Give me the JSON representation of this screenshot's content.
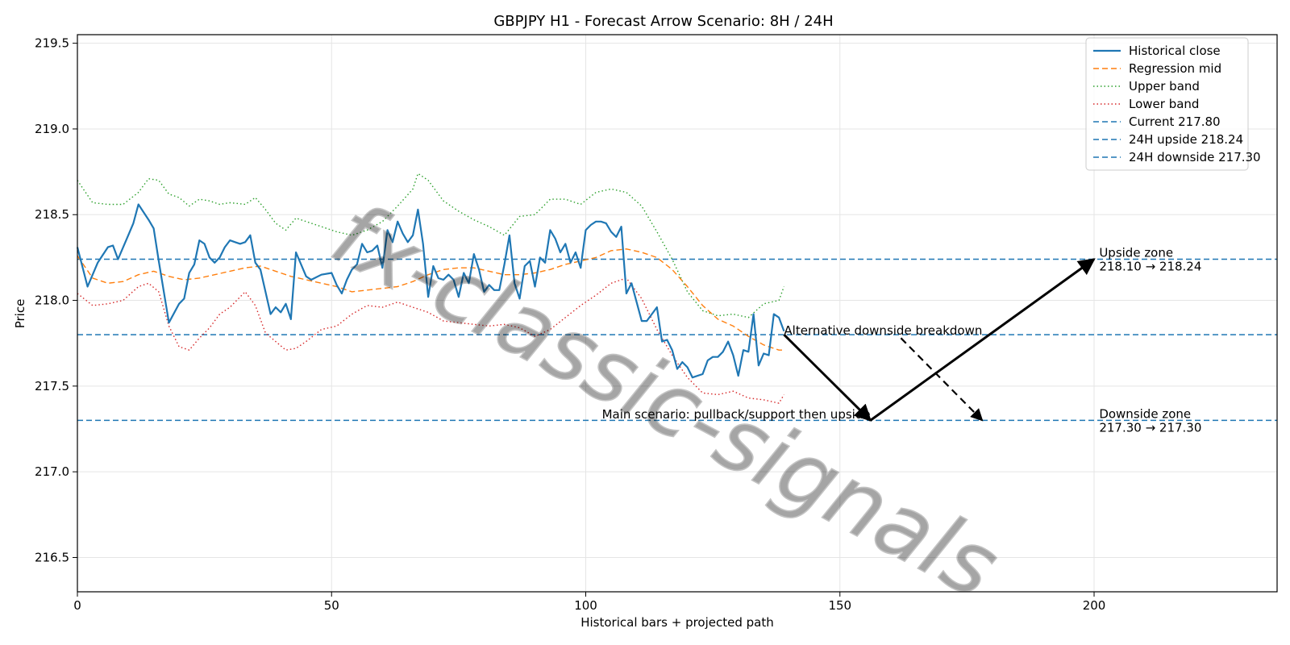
{
  "chart_data": {
    "type": "line",
    "title": "GBPJPY H1 - Forecast Arrow Scenario: 8H / 24H",
    "xlabel": "Historical bars + projected path",
    "ylabel": "Price",
    "xlim": [
      0,
      236
    ],
    "ylim": [
      216.3,
      219.55
    ],
    "x_ticks": [
      0,
      50,
      100,
      150,
      200
    ],
    "y_ticks": [
      216.5,
      217.0,
      217.5,
      218.0,
      218.5,
      219.0,
      219.5
    ],
    "y_tick_labels": [
      "216.5",
      "217.0",
      "217.5",
      "218.0",
      "218.5",
      "219.0",
      "219.5"
    ],
    "grid": true,
    "legend_position": "top-right",
    "series": [
      {
        "name": "Historical close",
        "style": "solid",
        "color": "#1f77b4",
        "x": [
          0,
          2,
          4,
          6,
          7,
          8,
          10,
          11,
          12,
          14,
          15,
          16,
          17,
          18,
          20,
          21,
          22,
          23,
          24,
          25,
          26,
          27,
          28,
          29,
          30,
          31,
          32,
          33,
          34,
          35,
          36,
          37,
          38,
          39,
          40,
          41,
          42,
          43,
          45,
          46,
          48,
          50,
          51,
          52,
          53,
          54,
          55,
          56,
          57,
          58,
          59,
          60,
          61,
          62,
          63,
          64,
          65,
          66,
          67,
          68,
          69,
          70,
          71,
          72,
          73,
          74,
          75,
          76,
          77,
          78,
          79,
          80,
          81,
          82,
          83,
          84,
          85,
          86,
          87,
          88,
          89,
          90,
          91,
          92,
          93,
          94,
          95,
          96,
          97,
          98,
          99,
          100,
          101,
          102,
          103,
          104,
          105,
          106,
          107,
          108,
          109,
          110,
          111,
          112,
          113,
          114,
          115,
          116,
          117,
          118,
          119,
          120,
          121,
          122,
          123,
          124,
          125,
          126,
          127,
          128,
          129,
          130,
          131,
          132,
          133,
          134,
          135,
          136,
          137,
          138,
          139
        ],
        "y": [
          218.31,
          218.08,
          218.22,
          218.31,
          218.32,
          218.24,
          218.38,
          218.45,
          218.56,
          218.47,
          218.42,
          218.23,
          218.05,
          217.87,
          217.98,
          218.01,
          218.16,
          218.21,
          218.35,
          218.33,
          218.25,
          218.22,
          218.25,
          218.31,
          218.35,
          218.34,
          218.33,
          218.34,
          218.38,
          218.22,
          218.18,
          218.05,
          217.92,
          217.96,
          217.93,
          217.98,
          217.89,
          218.28,
          218.14,
          218.12,
          218.15,
          218.16,
          218.09,
          218.04,
          218.12,
          218.18,
          218.21,
          218.33,
          218.28,
          218.29,
          218.32,
          218.19,
          218.41,
          218.34,
          218.46,
          218.39,
          218.34,
          218.38,
          218.53,
          218.33,
          218.02,
          218.2,
          218.13,
          218.12,
          218.15,
          218.12,
          218.02,
          218.16,
          218.1,
          218.27,
          218.18,
          218.05,
          218.09,
          218.06,
          218.06,
          218.21,
          218.38,
          218.1,
          218.01,
          218.2,
          218.23,
          218.08,
          218.25,
          218.22,
          218.41,
          218.36,
          218.28,
          218.33,
          218.22,
          218.28,
          218.19,
          218.41,
          218.44,
          218.46,
          218.46,
          218.45,
          218.4,
          218.37,
          218.43,
          218.04,
          218.1,
          217.99,
          217.88,
          217.88,
          217.92,
          217.96,
          217.76,
          217.77,
          217.71,
          217.6,
          217.64,
          217.61,
          217.55,
          217.56,
          217.57,
          217.65,
          217.67,
          217.67,
          217.7,
          217.76,
          217.68,
          217.56,
          217.71,
          217.7,
          217.92,
          217.62,
          217.69,
          217.68,
          217.92,
          217.9,
          217.82
        ]
      },
      {
        "name": "Regression mid",
        "style": "dashed",
        "color": "#ff7f0e",
        "x": [
          0,
          3,
          6,
          9,
          12,
          15,
          18,
          21,
          24,
          27,
          30,
          33,
          36,
          39,
          42,
          45,
          48,
          51,
          54,
          57,
          60,
          63,
          66,
          69,
          72,
          75,
          78,
          81,
          84,
          87,
          90,
          93,
          96,
          99,
          102,
          105,
          108,
          111,
          114,
          117,
          120,
          123,
          126,
          129,
          132,
          135,
          138,
          139
        ],
        "y": [
          218.26,
          218.13,
          218.1,
          218.11,
          218.15,
          218.17,
          218.14,
          218.12,
          218.13,
          218.15,
          218.17,
          218.19,
          218.2,
          218.17,
          218.14,
          218.12,
          218.1,
          218.08,
          218.05,
          218.06,
          218.07,
          218.08,
          218.11,
          218.15,
          218.18,
          218.19,
          218.19,
          218.17,
          218.15,
          218.15,
          218.16,
          218.18,
          218.21,
          218.23,
          218.25,
          218.29,
          218.3,
          218.28,
          218.25,
          218.18,
          218.08,
          217.97,
          217.89,
          217.85,
          217.79,
          217.74,
          217.71,
          217.71
        ]
      },
      {
        "name": "Upper band",
        "style": "dotted",
        "color": "#2ca02c",
        "x": [
          0,
          3,
          6,
          9,
          12,
          14,
          16,
          18,
          20,
          22,
          24,
          26,
          28,
          30,
          33,
          35,
          37,
          39,
          41,
          43,
          45,
          48,
          51,
          54,
          57,
          60,
          63,
          66,
          67,
          69,
          72,
          75,
          78,
          81,
          84,
          87,
          90,
          93,
          96,
          99,
          102,
          105,
          108,
          111,
          114,
          117,
          120,
          123,
          126,
          129,
          132,
          135,
          138,
          139
        ],
        "y": [
          218.7,
          218.57,
          218.56,
          218.56,
          218.63,
          218.71,
          218.7,
          218.62,
          218.6,
          218.55,
          218.59,
          218.58,
          218.56,
          218.57,
          218.56,
          218.6,
          218.53,
          218.45,
          218.41,
          218.48,
          218.46,
          218.43,
          218.4,
          218.38,
          218.41,
          218.46,
          218.55,
          218.65,
          218.74,
          218.7,
          218.58,
          218.52,
          218.47,
          218.43,
          218.38,
          218.49,
          218.5,
          218.59,
          218.59,
          218.56,
          218.63,
          218.65,
          218.63,
          218.55,
          218.4,
          218.24,
          218.05,
          217.94,
          217.91,
          217.92,
          217.9,
          217.98,
          218.0,
          218.08
        ]
      },
      {
        "name": "Lower band",
        "style": "dotted",
        "color": "#d62728",
        "x": [
          0,
          3,
          6,
          9,
          12,
          14,
          16,
          18,
          20,
          22,
          24,
          26,
          28,
          30,
          33,
          35,
          37,
          39,
          41,
          43,
          45,
          48,
          51,
          54,
          57,
          60,
          63,
          66,
          69,
          72,
          75,
          78,
          81,
          84,
          87,
          90,
          93,
          96,
          99,
          102,
          105,
          108,
          111,
          114,
          117,
          120,
          123,
          126,
          129,
          132,
          135,
          138,
          139
        ],
        "y": [
          218.04,
          217.97,
          217.98,
          218.0,
          218.08,
          218.1,
          218.05,
          217.85,
          217.73,
          217.71,
          217.78,
          217.84,
          217.92,
          217.96,
          218.05,
          217.97,
          217.81,
          217.76,
          217.71,
          217.72,
          217.76,
          217.83,
          217.85,
          217.92,
          217.97,
          217.96,
          217.99,
          217.96,
          217.93,
          217.88,
          217.87,
          217.86,
          217.85,
          217.86,
          217.84,
          217.79,
          217.83,
          217.9,
          217.97,
          218.03,
          218.1,
          218.13,
          218.01,
          217.83,
          217.68,
          217.55,
          217.46,
          217.45,
          217.47,
          217.43,
          217.42,
          217.4,
          217.45
        ]
      }
    ],
    "reference_lines": [
      {
        "name": "Current 217.80",
        "value": 217.8,
        "style": "dashed",
        "color": "#1f77b4"
      },
      {
        "name": "24H upside 218.24",
        "value": 218.24,
        "style": "dashed",
        "color": "#1f77b4"
      },
      {
        "name": "24H downside 217.30",
        "value": 217.3,
        "style": "dashed",
        "color": "#1f77b4"
      }
    ],
    "arrows": [
      {
        "kind": "main",
        "style": "solid",
        "from": [
          139,
          217.8
        ],
        "to": [
          156,
          217.3
        ]
      },
      {
        "kind": "main",
        "style": "solid",
        "from": [
          156,
          217.3
        ],
        "to": [
          200,
          218.24
        ]
      },
      {
        "kind": "alternative",
        "style": "dashed",
        "from": [
          162,
          217.78
        ],
        "to": [
          178,
          217.3
        ]
      }
    ],
    "annotations": [
      {
        "text": "Main scenario: pullback/support then upside",
        "x": 156,
        "y": 217.33,
        "anchor": "end"
      },
      {
        "text": "Alternative downside breakdown",
        "x": 139,
        "y": 217.82,
        "anchor": "start"
      }
    ],
    "zones": [
      {
        "line1": "Upside zone",
        "line2": "218.10 → 218.24",
        "x": 201,
        "y": 218.24
      },
      {
        "line1": "Downside zone",
        "line2": "217.30 → 217.30",
        "x": 201,
        "y": 217.3
      }
    ],
    "watermark": "fx-classic-signals"
  }
}
